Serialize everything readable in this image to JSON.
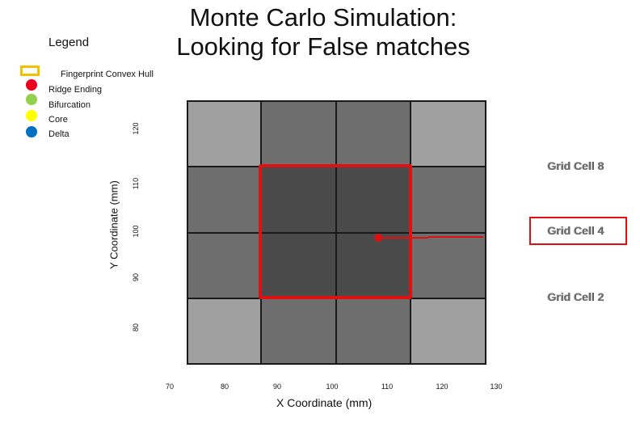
{
  "title_line1": "Monte Carlo Simulation:",
  "title_line2": "Looking for False matches",
  "legend": {
    "title": "Legend",
    "items": [
      {
        "label": "Fingerprint Convex Hull",
        "color": "#f2c200",
        "shape": "box"
      },
      {
        "label": "Ridge Ending",
        "color": "#e8001c",
        "shape": "dot"
      },
      {
        "label": "Bifurcation",
        "color": "#92d050",
        "shape": "dot"
      },
      {
        "label": "Core",
        "color": "#ffff00",
        "shape": "dot"
      },
      {
        "label": "Delta",
        "color": "#0070c0",
        "shape": "dot"
      }
    ]
  },
  "x_axis": {
    "label": "X Coordinate (mm)",
    "ticks": [
      "70",
      "80",
      "90",
      "100",
      "110",
      "120",
      "130"
    ]
  },
  "y_axis": {
    "label": "Y Coordinate (mm)",
    "ticks": [
      "80",
      "90",
      "100",
      "110",
      "120"
    ]
  },
  "grid": {
    "colors": {
      "light": "#a0a0a0",
      "mid": "#6e6e6e",
      "dark": "#4a4a4a"
    },
    "rows": [
      [
        "light",
        "mid",
        "mid",
        "light"
      ],
      [
        "mid",
        "dark",
        "dark",
        "mid"
      ],
      [
        "mid",
        "dark",
        "dark",
        "mid"
      ],
      [
        "light",
        "mid",
        "mid",
        "light"
      ]
    ]
  },
  "grid_cell_labels": [
    {
      "text": "Grid Cell 8"
    },
    {
      "text": "Grid Cell 4"
    },
    {
      "text": "Grid Cell 2"
    }
  ],
  "hull_color": "#e01010"
}
